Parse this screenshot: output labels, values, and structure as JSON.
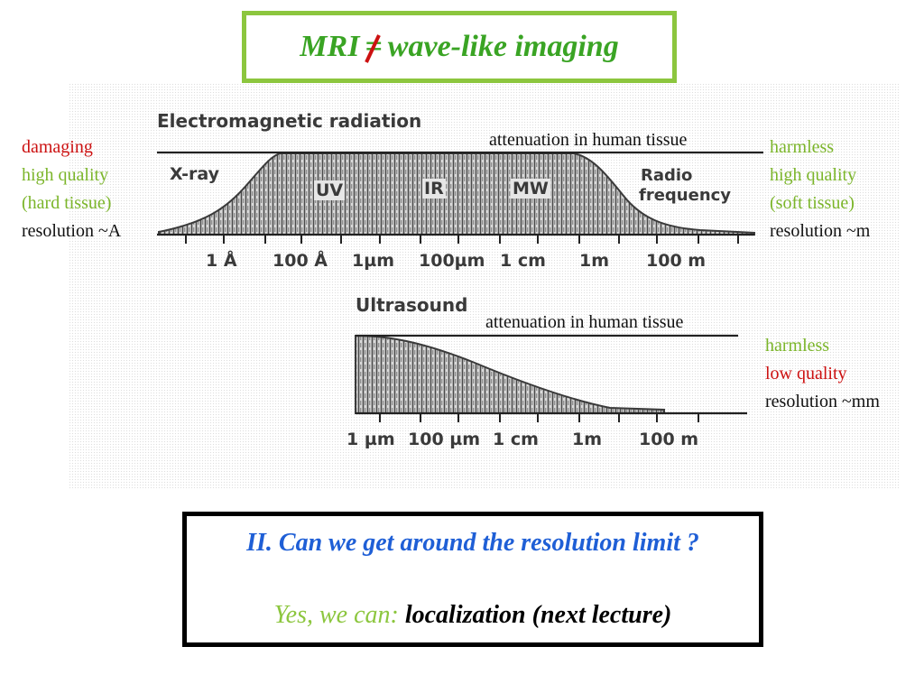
{
  "title": {
    "left": "MRI",
    "symbol": "=",
    "right": "wave-like imaging",
    "negation_color": "#cc1111"
  },
  "em": {
    "heading": "Electromagnetic radiation",
    "attenuation_label": "attenuation in human tissue",
    "bands": [
      "X-ray",
      "UV",
      "IR",
      "MW"
    ],
    "radio_1": "Radio",
    "radio_2": "frequency",
    "ticks": [
      "1 Å",
      "100 Å",
      "1µm",
      "100µm",
      "1 cm",
      "1m",
      "100 m"
    ],
    "left_notes": [
      "damaging",
      "high quality",
      "(hard tissue)",
      "resolution ~A"
    ],
    "right_notes": [
      "harmless",
      "high quality",
      "(soft tissue)",
      "resolution ~m"
    ]
  },
  "us": {
    "heading": "Ultrasound",
    "attenuation_label": "attenuation in human tissue",
    "ticks": [
      "1 µm",
      "100 µm",
      "1 cm",
      "1m",
      "100 m"
    ],
    "right_notes": [
      "harmless",
      "low quality",
      "resolution ~mm"
    ]
  },
  "question": {
    "line1": "II. Can we get around the resolution limit ?",
    "line2_a": "Yes, we can:",
    "line2_b": "localization (next lecture)"
  },
  "colors": {
    "title_border": "#8cc63e",
    "title_text": "#3aa424",
    "red": "#cc1111",
    "green": "#7bb52a",
    "blue": "#1f5fd6"
  }
}
